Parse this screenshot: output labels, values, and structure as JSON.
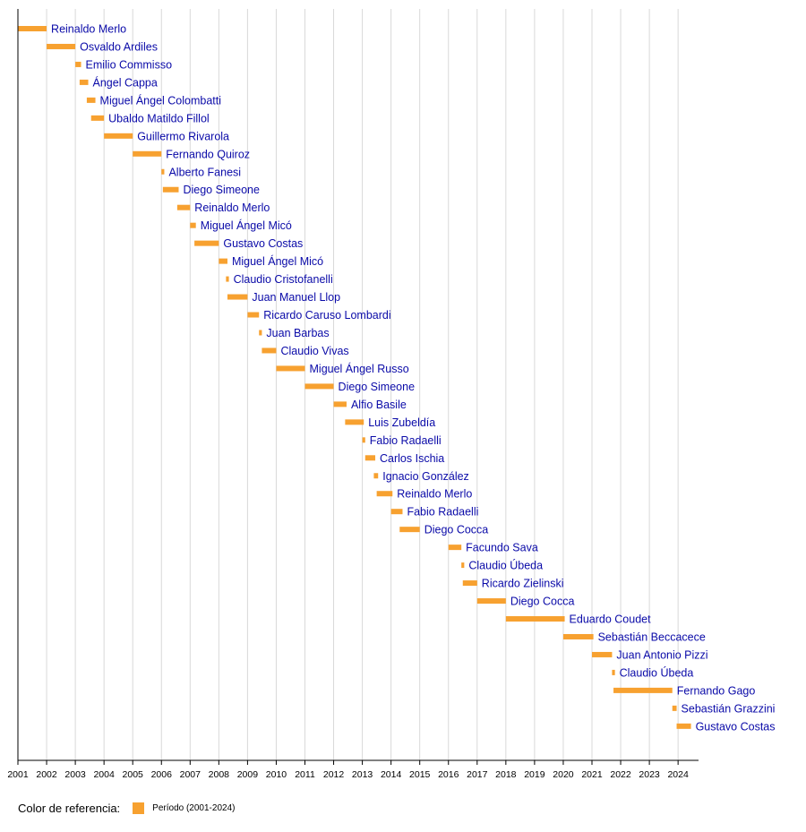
{
  "chart_data": {
    "type": "timeline",
    "title": "",
    "xlabel": "",
    "ylabel": "",
    "xlim": [
      2001,
      2024.4
    ],
    "grid": true,
    "ticks": [
      2001,
      2002,
      2003,
      2004,
      2005,
      2006,
      2007,
      2008,
      2009,
      2010,
      2011,
      2012,
      2013,
      2014,
      2015,
      2016,
      2017,
      2018,
      2019,
      2020,
      2021,
      2022,
      2023,
      2024
    ],
    "bar_color": "#f7a130",
    "label_color": "#0a0aa8",
    "entries": [
      {
        "name": "Reinaldo Merlo",
        "start": 2001.0,
        "end": 2002.0
      },
      {
        "name": "Osvaldo Ardiles",
        "start": 2002.0,
        "end": 2003.0
      },
      {
        "name": "Emilio Commisso",
        "start": 2003.0,
        "end": 2003.2
      },
      {
        "name": "Ángel Cappa",
        "start": 2003.15,
        "end": 2003.45
      },
      {
        "name": "Miguel Ángel Colombatti",
        "start": 2003.4,
        "end": 2003.7
      },
      {
        "name": "Ubaldo Matildo Fillol",
        "start": 2003.55,
        "end": 2004.0
      },
      {
        "name": "Guillermo Rivarola",
        "start": 2004.0,
        "end": 2005.0
      },
      {
        "name": "Fernando Quiroz",
        "start": 2005.0,
        "end": 2006.0
      },
      {
        "name": "Alberto Fanesi",
        "start": 2006.0,
        "end": 2006.1
      },
      {
        "name": "Diego Simeone",
        "start": 2006.05,
        "end": 2006.6
      },
      {
        "name": "Reinaldo Merlo",
        "start": 2006.55,
        "end": 2007.0
      },
      {
        "name": "Miguel Ángel Micó",
        "start": 2007.0,
        "end": 2007.2
      },
      {
        "name": "Gustavo Costas",
        "start": 2007.15,
        "end": 2008.0
      },
      {
        "name": "Miguel Ángel Micó",
        "start": 2008.0,
        "end": 2008.3
      },
      {
        "name": "Claudio Cristofanelli",
        "start": 2008.25,
        "end": 2008.35
      },
      {
        "name": "Juan Manuel Llop",
        "start": 2008.3,
        "end": 2009.0
      },
      {
        "name": "Ricardo Caruso Lombardi",
        "start": 2009.0,
        "end": 2009.4
      },
      {
        "name": "Juan Barbas",
        "start": 2009.4,
        "end": 2009.5
      },
      {
        "name": "Claudio Vivas",
        "start": 2009.5,
        "end": 2010.0
      },
      {
        "name": "Miguel Ángel Russo",
        "start": 2010.0,
        "end": 2011.0
      },
      {
        "name": "Diego Simeone",
        "start": 2011.0,
        "end": 2012.0
      },
      {
        "name": "Alfio Basile",
        "start": 2012.0,
        "end": 2012.45
      },
      {
        "name": "Luis Zubeldía",
        "start": 2012.4,
        "end": 2013.05
      },
      {
        "name": "Fabio Radaelli",
        "start": 2013.0,
        "end": 2013.1
      },
      {
        "name": "Carlos Ischia",
        "start": 2013.1,
        "end": 2013.45
      },
      {
        "name": "Ignacio González",
        "start": 2013.4,
        "end": 2013.55
      },
      {
        "name": "Reinaldo Merlo",
        "start": 2013.5,
        "end": 2014.05
      },
      {
        "name": "Fabio Radaelli",
        "start": 2014.0,
        "end": 2014.4
      },
      {
        "name": "Diego Cocca",
        "start": 2014.3,
        "end": 2015.0
      },
      {
        "name": "Facundo Sava",
        "start": 2016.0,
        "end": 2016.45
      },
      {
        "name": "Claudio Úbeda",
        "start": 2016.45,
        "end": 2016.55
      },
      {
        "name": "Ricardo Zielinski",
        "start": 2016.5,
        "end": 2017.0
      },
      {
        "name": "Diego Cocca",
        "start": 2017.0,
        "end": 2018.0
      },
      {
        "name": "Eduardo Coudet",
        "start": 2018.0,
        "end": 2020.05
      },
      {
        "name": "Sebastián Beccacece",
        "start": 2020.0,
        "end": 2021.05
      },
      {
        "name": "Juan Antonio Pizzi",
        "start": 2021.0,
        "end": 2021.7
      },
      {
        "name": "Claudio Úbeda",
        "start": 2021.7,
        "end": 2021.8
      },
      {
        "name": "Fernando Gago",
        "start": 2021.75,
        "end": 2023.8
      },
      {
        "name": "Sebastián Grazzini",
        "start": 2023.8,
        "end": 2023.95
      },
      {
        "name": "Gustavo Costas",
        "start": 2023.95,
        "end": 2024.45
      }
    ],
    "legend": {
      "title": "Color de referencia:",
      "items": [
        {
          "label": "Período (2001-2024)",
          "color": "#f7a130"
        }
      ],
      "position": "bottom-left"
    }
  }
}
